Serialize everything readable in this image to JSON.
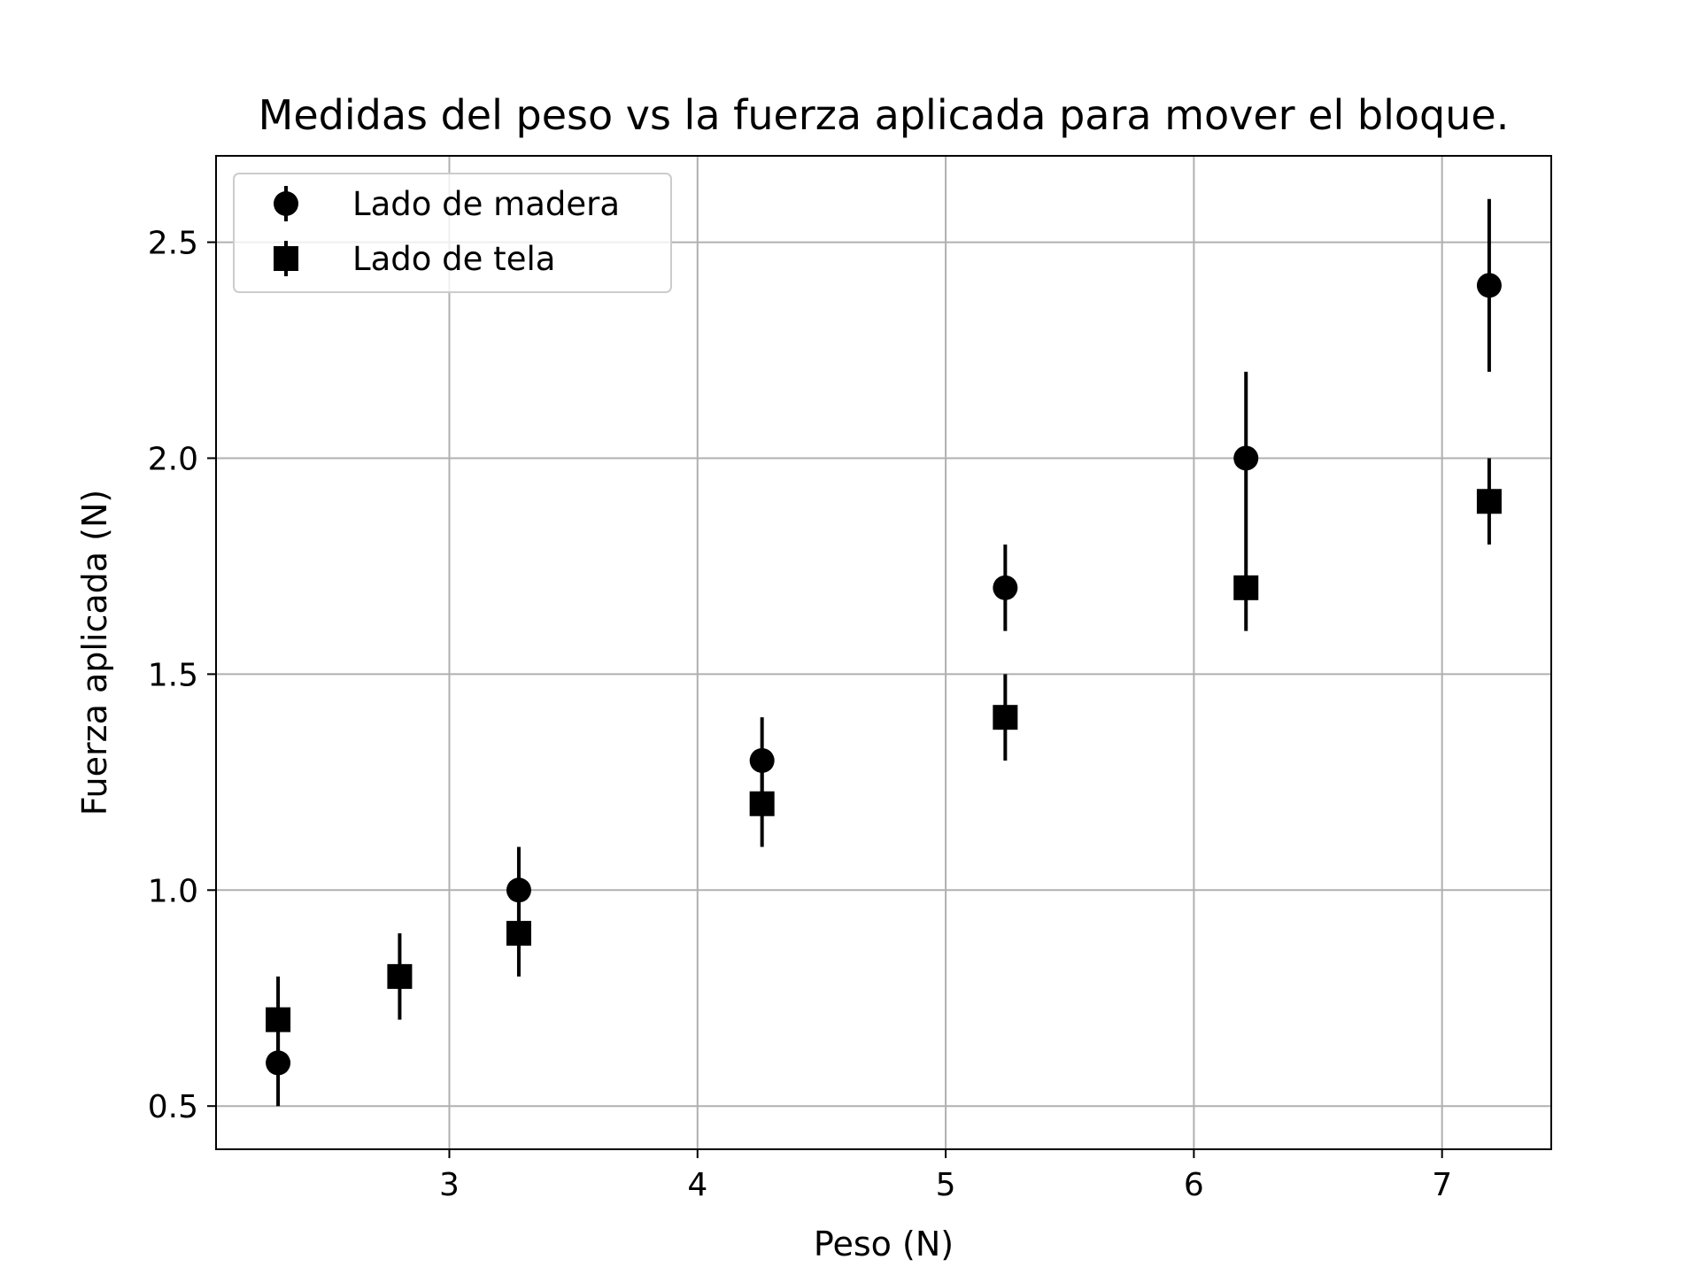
{
  "chart_data": {
    "type": "scatter",
    "title": "Medidas del peso vs la fuerza aplicada para mover el bloque.",
    "xlabel": "Peso (N)",
    "ylabel": "Fuerza aplicada (N)",
    "xlim": [
      2.06,
      7.44
    ],
    "ylim": [
      0.4,
      2.7
    ],
    "xticks": [
      3,
      4,
      5,
      6,
      7
    ],
    "xtick_labels": [
      "3",
      "4",
      "5",
      "6",
      "7"
    ],
    "yticks": [
      0.5,
      1.0,
      1.5,
      2.0,
      2.5
    ],
    "ytick_labels": [
      "0.5",
      "1.0",
      "1.5",
      "2.0",
      "2.5"
    ],
    "grid": true,
    "legend_position": "top-left",
    "colors": {
      "markers": "#000000",
      "grid": "#b0b0b0",
      "axes": "#000000"
    },
    "series": [
      {
        "name": "Lado de madera",
        "marker": "circle",
        "points": [
          {
            "x": 2.31,
            "y": 0.6,
            "err": 0.1
          },
          {
            "x": 3.28,
            "y": 1.0,
            "err": 0.1
          },
          {
            "x": 4.26,
            "y": 1.3,
            "err": 0.1
          },
          {
            "x": 5.24,
            "y": 1.7,
            "err": 0.1
          },
          {
            "x": 6.21,
            "y": 2.0,
            "err": 0.2
          },
          {
            "x": 7.19,
            "y": 2.4,
            "err": 0.2
          }
        ]
      },
      {
        "name": "Lado de tela",
        "marker": "square",
        "points": [
          {
            "x": 2.31,
            "y": 0.7,
            "err": 0.1
          },
          {
            "x": 2.8,
            "y": 0.8,
            "err": 0.1
          },
          {
            "x": 3.28,
            "y": 0.9,
            "err": 0.1
          },
          {
            "x": 4.26,
            "y": 1.2,
            "err": 0.1
          },
          {
            "x": 5.24,
            "y": 1.4,
            "err": 0.1
          },
          {
            "x": 6.21,
            "y": 1.7,
            "err": 0.1
          },
          {
            "x": 7.19,
            "y": 1.9,
            "err": 0.1
          }
        ]
      }
    ]
  }
}
